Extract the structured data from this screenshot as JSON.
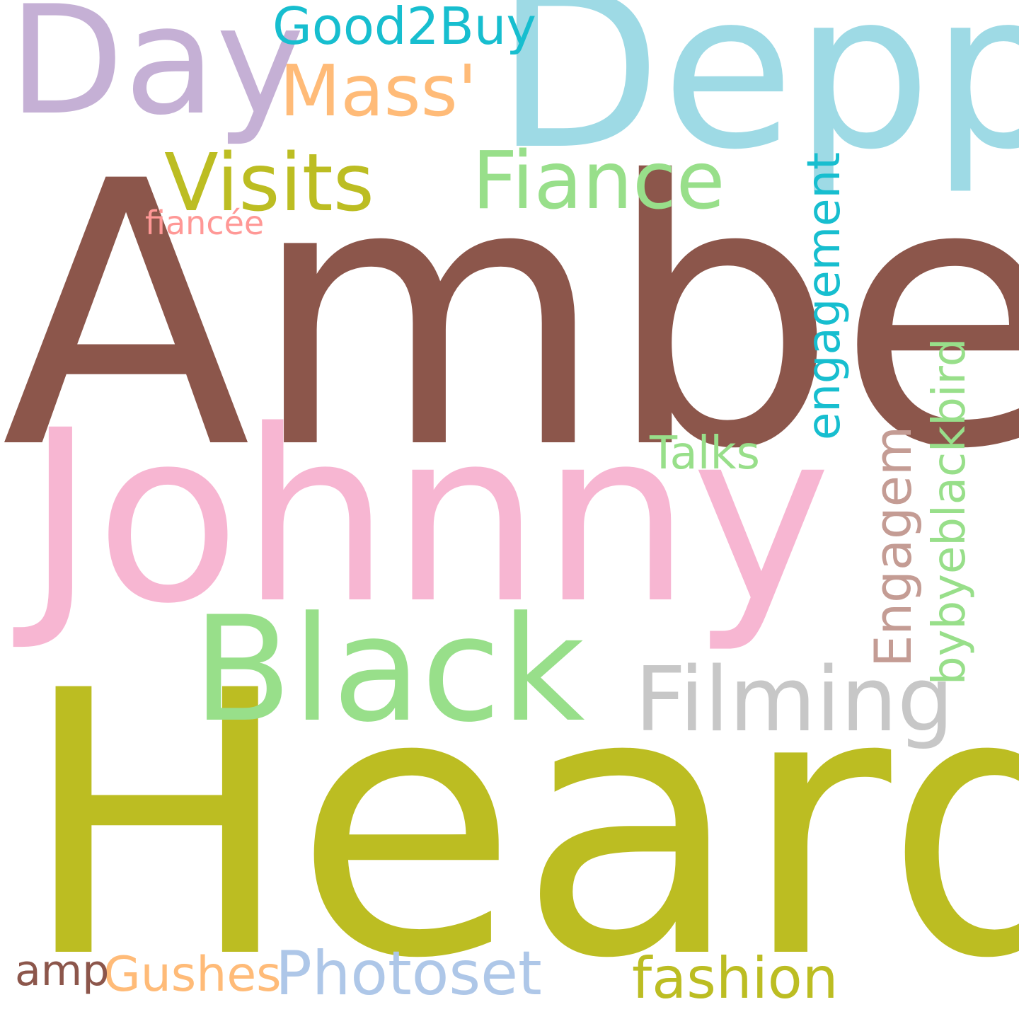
{
  "words": [
    {
      "text": "Amber",
      "color": "#8c564b"
    },
    {
      "text": "Heard",
      "color": "#bcbd22"
    },
    {
      "text": "Johnny",
      "color": "#f7b6d2"
    },
    {
      "text": "Depp",
      "color": "#9edae5"
    },
    {
      "text": "Day",
      "color": "#c5b0d5"
    },
    {
      "text": "Black",
      "color": "#98df8a"
    },
    {
      "text": "Visits",
      "color": "#bcbd22"
    },
    {
      "text": "Fiance",
      "color": "#98df8a"
    },
    {
      "text": "Mass'",
      "color": "#ffbb78"
    },
    {
      "text": "Good2Buy",
      "color": "#17becf"
    },
    {
      "text": "Filming",
      "color": "#c7c7c7"
    },
    {
      "text": "engagement",
      "color": "#17becf"
    },
    {
      "text": "bybyeblackbird",
      "color": "#98df8a"
    },
    {
      "text": "Engagem",
      "color": "#c49c94"
    },
    {
      "text": "Talks",
      "color": "#98df8a"
    },
    {
      "text": "fiancée",
      "color": "#ff9896"
    },
    {
      "text": "Photoset",
      "color": "#aec7e8"
    },
    {
      "text": "fashion",
      "color": "#bcbd22"
    },
    {
      "text": "Gushes",
      "color": "#ffbb78"
    },
    {
      "text": "amp",
      "color": "#8c564b"
    }
  ]
}
